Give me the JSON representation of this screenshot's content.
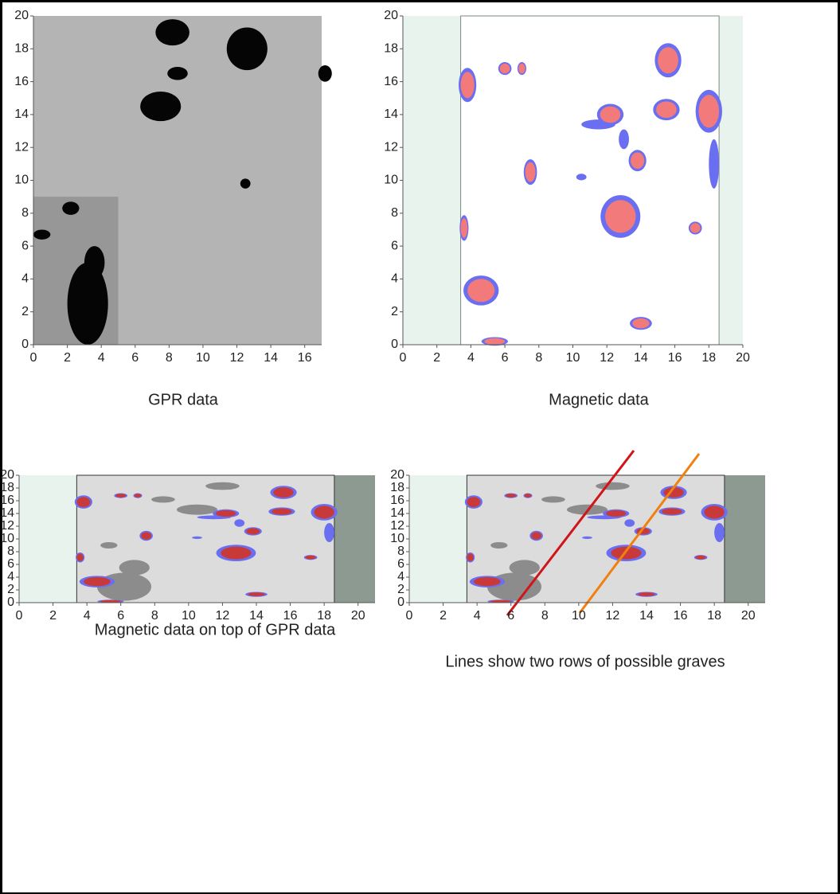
{
  "panels": [
    {
      "caption": "GPR data",
      "xlim": [
        0,
        17
      ],
      "ylim": [
        0,
        20
      ],
      "xticks": [
        0,
        2,
        4,
        6,
        8,
        10,
        12,
        14,
        16
      ],
      "yticks": [
        0,
        2,
        4,
        6,
        8,
        10,
        12,
        14,
        16,
        18,
        20
      ]
    },
    {
      "caption": "Magnetic data",
      "xlim": [
        0,
        20
      ],
      "ylim": [
        0,
        20
      ],
      "xticks": [
        0,
        2,
        4,
        6,
        8,
        10,
        12,
        14,
        16,
        18,
        20
      ],
      "yticks": [
        0,
        2,
        4,
        6,
        8,
        10,
        12,
        14,
        16,
        18,
        20
      ]
    },
    {
      "caption": "Magnetic data on top of GPR data",
      "xlim": [
        0,
        21
      ],
      "ylim": [
        0,
        20
      ],
      "xticks": [
        0,
        2,
        4,
        6,
        8,
        10,
        12,
        14,
        16,
        18,
        20
      ],
      "yticks": [
        0,
        2,
        4,
        6,
        8,
        10,
        12,
        14,
        16,
        18,
        20
      ]
    },
    {
      "caption": "Lines show two rows of possible graves",
      "xlim": [
        0,
        21
      ],
      "ylim": [
        0,
        20
      ],
      "xticks": [
        0,
        2,
        4,
        6,
        8,
        10,
        12,
        14,
        16,
        18,
        20
      ],
      "yticks": [
        0,
        2,
        4,
        6,
        8,
        10,
        12,
        14,
        16,
        18,
        20
      ]
    }
  ]
}
